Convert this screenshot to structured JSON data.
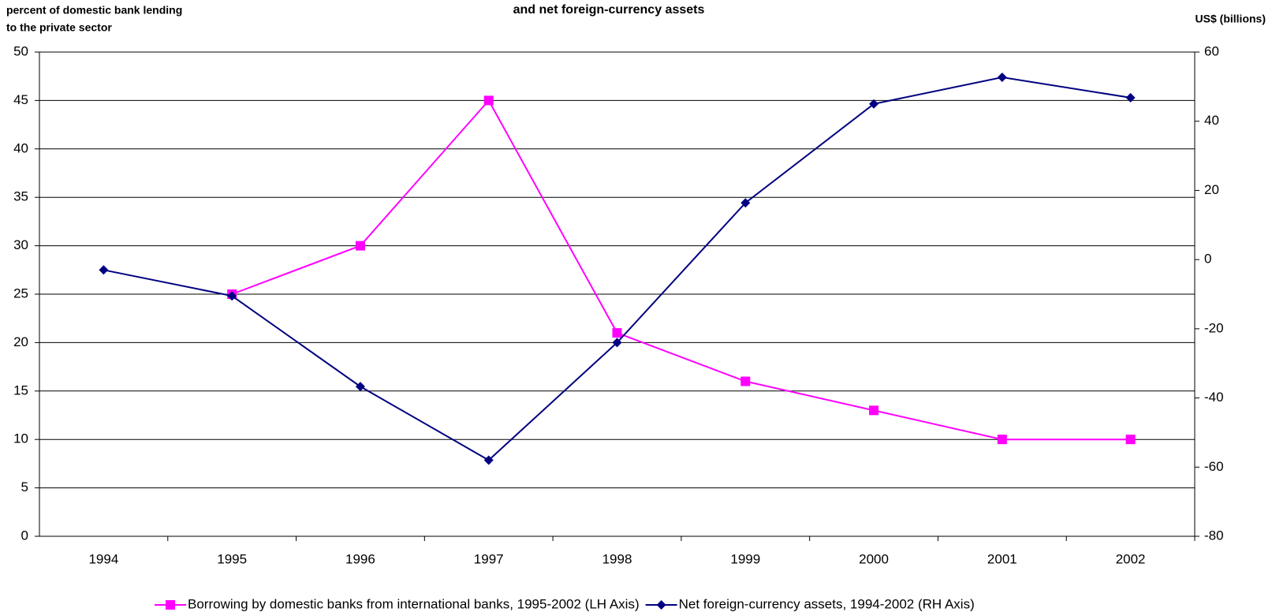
{
  "chart_data": {
    "type": "line",
    "title": "and net foreign-currency assets",
    "ylabel": [
      "percent of domestic bank lending",
      "to the private sector"
    ],
    "y2label": "US$ (billions)",
    "categories": [
      "1994",
      "1995",
      "1996",
      "1997",
      "1998",
      "1999",
      "2000",
      "2001",
      "2002"
    ],
    "series": [
      {
        "name": "Borrowing by domestic banks from international banks, 1995-2002 (LH Axis)",
        "color": "#ff00ff",
        "marker": "square",
        "values": [
          null,
          25,
          30,
          45,
          21,
          16,
          13,
          10,
          10
        ]
      },
      {
        "name": "Net foreign-currency assets, 1994-2002 (RH Axis)",
        "color": "#000080",
        "marker": "diamond",
        "axis": "y2",
        "values": [
          -3,
          -10.5,
          -36.7,
          -58,
          -24,
          16.4,
          45,
          52.7,
          46.8
        ]
      }
    ],
    "ylim": [
      0,
      50
    ],
    "yticks": [
      0,
      5,
      10,
      15,
      20,
      25,
      30,
      35,
      40,
      45,
      50
    ],
    "y2lim": [
      -80,
      60
    ],
    "y2ticks": [
      -80,
      -60,
      -40,
      -20,
      0,
      20,
      40,
      60
    ],
    "grid": true,
    "legend": "bottom"
  }
}
